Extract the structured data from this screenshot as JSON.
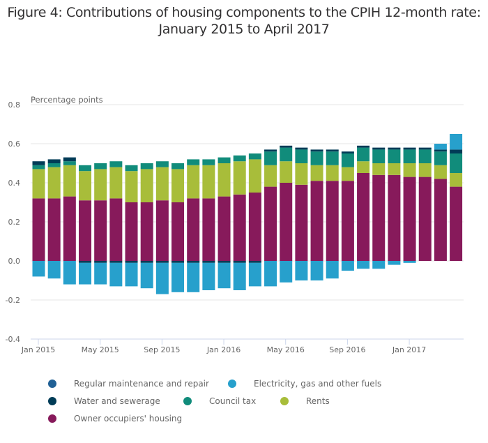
{
  "chart_data": {
    "type": "bar",
    "stacked": true,
    "title": "Figure 4: Contributions of housing components to the CPIH 12-month rate:",
    "subtitle": "January 2015 to April 2017",
    "ylabel": "Percentage points",
    "xlabel": "",
    "ylim": [
      -0.4,
      0.8
    ],
    "yticks": [
      "0.8",
      "0.6",
      "0.4",
      "0.2",
      "0.0",
      "-0.2",
      "-0.4"
    ],
    "ytick_values": [
      0.8,
      0.6,
      0.4,
      0.2,
      0.0,
      -0.2,
      -0.4
    ],
    "grid": true,
    "legend_position": "bottom",
    "xticks": [
      {
        "index": 0,
        "label": "Jan 2015"
      },
      {
        "index": 4,
        "label": "May 2015"
      },
      {
        "index": 8,
        "label": "Sep 2015"
      },
      {
        "index": 12,
        "label": "Jan 2016"
      },
      {
        "index": 16,
        "label": "May 2016"
      },
      {
        "index": 20,
        "label": "Sep 2016"
      },
      {
        "index": 24,
        "label": "Jan 2017"
      }
    ],
    "categories": [
      "Jan 2015",
      "Feb 2015",
      "Mar 2015",
      "Apr 2015",
      "May 2015",
      "Jun 2015",
      "Jul 2015",
      "Aug 2015",
      "Sep 2015",
      "Oct 2015",
      "Nov 2015",
      "Dec 2015",
      "Jan 2016",
      "Feb 2016",
      "Mar 2016",
      "Apr 2016",
      "May 2016",
      "Jun 2016",
      "Jul 2016",
      "Aug 2016",
      "Sep 2016",
      "Oct 2016",
      "Nov 2016",
      "Dec 2016",
      "Jan 2017",
      "Feb 2017",
      "Mar 2017",
      "Apr 2017"
    ],
    "series": [
      {
        "name": "Owner occupiers' housing",
        "color": "#871a5b",
        "values": [
          0.32,
          0.32,
          0.33,
          0.31,
          0.31,
          0.32,
          0.3,
          0.3,
          0.31,
          0.3,
          0.32,
          0.32,
          0.33,
          0.34,
          0.35,
          0.38,
          0.4,
          0.39,
          0.41,
          0.41,
          0.41,
          0.45,
          0.44,
          0.44,
          0.43,
          0.43,
          0.42,
          0.38
        ]
      },
      {
        "name": "Rents",
        "color": "#a8bd3a",
        "values": [
          0.15,
          0.16,
          0.16,
          0.15,
          0.16,
          0.16,
          0.16,
          0.17,
          0.17,
          0.17,
          0.17,
          0.17,
          0.17,
          0.17,
          0.17,
          0.11,
          0.11,
          0.11,
          0.08,
          0.08,
          0.07,
          0.06,
          0.06,
          0.06,
          0.07,
          0.07,
          0.07,
          0.07
        ]
      },
      {
        "name": "Council tax",
        "color": "#118c7b",
        "values": [
          0.02,
          0.02,
          0.02,
          0.03,
          0.03,
          0.03,
          0.03,
          0.03,
          0.03,
          0.03,
          0.03,
          0.03,
          0.03,
          0.03,
          0.03,
          0.07,
          0.07,
          0.07,
          0.07,
          0.07,
          0.07,
          0.07,
          0.07,
          0.07,
          0.07,
          0.07,
          0.07,
          0.1
        ]
      },
      {
        "name": "Water and sewerage",
        "color": "#003c57",
        "values": [
          0.02,
          0.02,
          0.02,
          -0.01,
          -0.01,
          -0.01,
          -0.01,
          -0.01,
          -0.01,
          -0.01,
          -0.01,
          -0.01,
          -0.01,
          -0.01,
          -0.01,
          0.01,
          0.01,
          0.01,
          0.01,
          0.01,
          0.01,
          0.01,
          0.01,
          0.01,
          0.01,
          0.01,
          0.01,
          0.02
        ]
      },
      {
        "name": "Electricity, gas and other fuels",
        "color": "#27a0cc",
        "values": [
          -0.08,
          -0.09,
          -0.12,
          -0.11,
          -0.11,
          -0.12,
          -0.12,
          -0.13,
          -0.16,
          -0.15,
          -0.15,
          -0.14,
          -0.13,
          -0.14,
          -0.12,
          -0.13,
          -0.11,
          -0.1,
          -0.1,
          -0.09,
          -0.05,
          -0.04,
          -0.04,
          -0.02,
          -0.01,
          0.0,
          0.03,
          0.08
        ]
      },
      {
        "name": "Regular maintenance and repair",
        "color": "#206095",
        "values": [
          0,
          0,
          0,
          0,
          0,
          0,
          0,
          0,
          0,
          0,
          0,
          0,
          0,
          0,
          0,
          0,
          0,
          0,
          0,
          0,
          0,
          0,
          0,
          0,
          0,
          0,
          0,
          0
        ]
      }
    ]
  },
  "legend": [
    {
      "name": "Regular maintenance and repair",
      "color": "#206095"
    },
    {
      "name": "Electricity, gas and other fuels",
      "color": "#27a0cc"
    },
    {
      "name": "Water and sewerage",
      "color": "#003c57"
    },
    {
      "name": "Council tax",
      "color": "#118c7b"
    },
    {
      "name": "Rents",
      "color": "#a8bd3a"
    },
    {
      "name": "Owner occupiers' housing",
      "color": "#871a5b"
    }
  ]
}
